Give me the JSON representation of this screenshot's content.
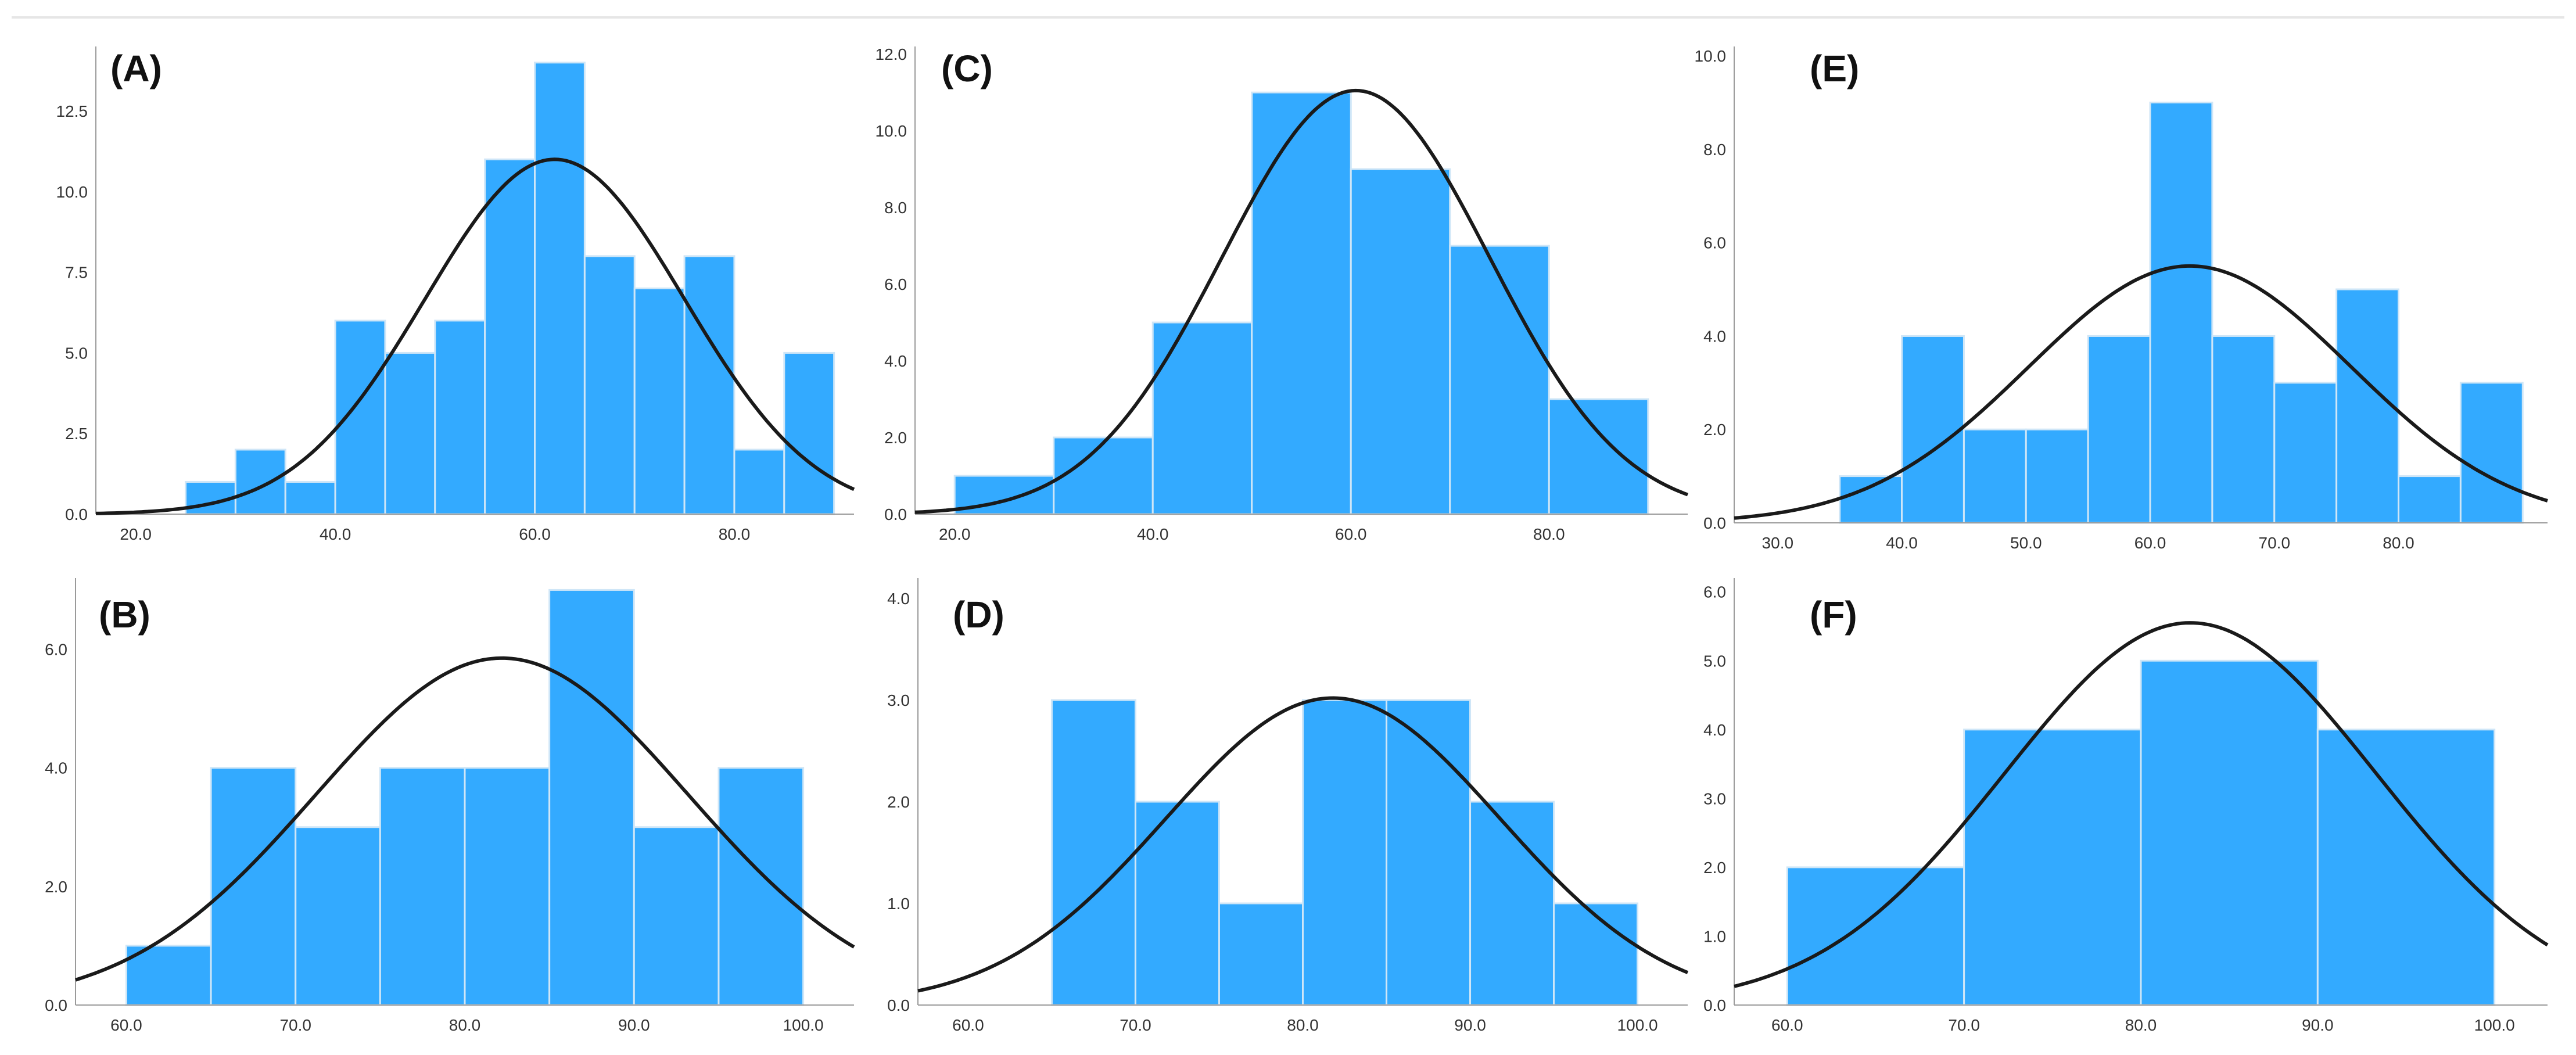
{
  "figure": {
    "panel_count": 6
  },
  "colors": {
    "bar": "#33aaff",
    "bar_edge": "#cfe6f7",
    "curve": "#1a1a1a",
    "axis": "#9a9a9a",
    "text": "#333333"
  },
  "chart_data": [
    {
      "id": "A",
      "label": "(A)",
      "type": "bar",
      "title": "",
      "xlabel": "",
      "ylabel": "",
      "bins": [
        [
          25,
          30
        ],
        [
          30,
          35
        ],
        [
          35,
          40
        ],
        [
          40,
          45
        ],
        [
          45,
          50
        ],
        [
          50,
          55
        ],
        [
          55,
          60
        ],
        [
          60,
          65
        ],
        [
          65,
          70
        ],
        [
          70,
          75
        ],
        [
          75,
          80
        ],
        [
          80,
          85
        ],
        [
          85,
          90
        ]
      ],
      "values": [
        1,
        2,
        1,
        6,
        5,
        6,
        11,
        14,
        8,
        7,
        8,
        2,
        5
      ],
      "xlim": [
        16,
        92
      ],
      "ylim": [
        0,
        14.5
      ],
      "xticks": [
        20,
        40,
        60,
        80
      ],
      "xtick_labels": [
        "20.0",
        "40.0",
        "60.0",
        "80.0"
      ],
      "yticks": [
        0,
        2.5,
        5,
        7.5,
        10,
        12.5
      ],
      "ytick_labels": [
        "0.0",
        "2.5",
        "5.0",
        "7.5",
        "10.0",
        "12.5"
      ],
      "normal_curve": {
        "mean": 62,
        "sd": 13,
        "peak": 11
      }
    },
    {
      "id": "B",
      "label": "(B)",
      "type": "bar",
      "title": "",
      "xlabel": "",
      "ylabel": "",
      "bins": [
        [
          60,
          65
        ],
        [
          65,
          70
        ],
        [
          70,
          75
        ],
        [
          75,
          80
        ],
        [
          80,
          85
        ],
        [
          85,
          90
        ],
        [
          90,
          95
        ],
        [
          95,
          100
        ]
      ],
      "values": [
        1,
        4,
        3,
        4,
        4,
        7,
        3,
        4
      ],
      "xlim": [
        57,
        103
      ],
      "ylim": [
        0,
        7.2
      ],
      "xticks": [
        60,
        70,
        80,
        90,
        100
      ],
      "xtick_labels": [
        "60.0",
        "70.0",
        "80.0",
        "90.0",
        "100.0"
      ],
      "yticks": [
        0,
        2,
        4,
        6
      ],
      "ytick_labels": [
        "0.0",
        "2.0",
        "4.0",
        "6.0"
      ],
      "normal_curve": {
        "mean": 82.2,
        "sd": 11,
        "peak": 5.85
      }
    },
    {
      "id": "C",
      "label": "(C)",
      "type": "bar",
      "title": "",
      "xlabel": "",
      "ylabel": "",
      "bins": [
        [
          20,
          30
        ],
        [
          30,
          40
        ],
        [
          40,
          50
        ],
        [
          50,
          60
        ],
        [
          60,
          70
        ],
        [
          70,
          80
        ],
        [
          80,
          90
        ]
      ],
      "values": [
        1,
        2,
        5,
        11,
        9,
        7,
        3
      ],
      "xlim": [
        16,
        94
      ],
      "ylim": [
        0,
        12.2
      ],
      "xticks": [
        20,
        40,
        60,
        80
      ],
      "xtick_labels": [
        "20.0",
        "40.0",
        "60.0",
        "80.0"
      ],
      "yticks": [
        0,
        2,
        4,
        6,
        8,
        10,
        12
      ],
      "ytick_labels": [
        "0.0",
        "2.0",
        "4.0",
        "6.0",
        "8.0",
        "10.0",
        "12.0"
      ],
      "normal_curve": {
        "mean": 60.5,
        "sd": 13.5,
        "peak": 11.05
      }
    },
    {
      "id": "D",
      "label": "(D)",
      "type": "bar",
      "title": "",
      "xlabel": "",
      "ylabel": "",
      "bins": [
        [
          65,
          70
        ],
        [
          70,
          75
        ],
        [
          75,
          80
        ],
        [
          80,
          85
        ],
        [
          85,
          90
        ],
        [
          90,
          95
        ],
        [
          95,
          100
        ]
      ],
      "values": [
        3,
        2,
        1,
        3,
        3,
        2,
        1
      ],
      "xlim": [
        57,
        103
      ],
      "ylim": [
        0,
        4.2
      ],
      "xticks": [
        60,
        70,
        80,
        90,
        100
      ],
      "xtick_labels": [
        "60.0",
        "70.0",
        "80.0",
        "90.0",
        "100.0"
      ],
      "yticks": [
        0,
        1,
        2,
        3,
        4
      ],
      "ytick_labels": [
        "0.0",
        "1.0",
        "2.0",
        "3.0",
        "4.0"
      ],
      "normal_curve": {
        "mean": 81.8,
        "sd": 10,
        "peak": 3.02
      }
    },
    {
      "id": "E",
      "label": "(E)",
      "type": "bar",
      "title": "",
      "xlabel": "",
      "ylabel": "",
      "bins": [
        [
          35,
          40
        ],
        [
          40,
          45
        ],
        [
          45,
          50
        ],
        [
          50,
          55
        ],
        [
          55,
          60
        ],
        [
          60,
          65
        ],
        [
          65,
          70
        ],
        [
          70,
          75
        ],
        [
          75,
          80
        ],
        [
          80,
          85
        ],
        [
          85,
          90
        ]
      ],
      "values": [
        1,
        4,
        2,
        2,
        4,
        9,
        4,
        3,
        5,
        1,
        3
      ],
      "xlim": [
        26.5,
        92
      ],
      "ylim": [
        0,
        10.2
      ],
      "xticks": [
        30,
        40,
        50,
        60,
        70,
        80
      ],
      "xtick_labels": [
        "30.0",
        "40.0",
        "50.0",
        "60.0",
        "70.0",
        "80.0"
      ],
      "yticks": [
        0,
        2,
        4,
        6,
        8,
        10
      ],
      "ytick_labels": [
        "0.0",
        "2.0",
        "4.0",
        "6.0",
        "8.0",
        "10.0"
      ],
      "normal_curve": {
        "mean": 63.2,
        "sd": 13,
        "peak": 5.5
      }
    },
    {
      "id": "F",
      "label": "(F)",
      "type": "bar",
      "title": "",
      "xlabel": "",
      "ylabel": "",
      "bins": [
        [
          60,
          70
        ],
        [
          70,
          80
        ],
        [
          80,
          90
        ],
        [
          90,
          100
        ]
      ],
      "values": [
        2,
        4,
        5,
        4
      ],
      "xlim": [
        57,
        103
      ],
      "ylim": [
        0,
        6.2
      ],
      "xticks": [
        60,
        70,
        80,
        90,
        100
      ],
      "xtick_labels": [
        "60.0",
        "70.0",
        "80.0",
        "90.0",
        "100.0"
      ],
      "yticks": [
        0,
        1,
        2,
        3,
        4,
        5,
        6
      ],
      "ytick_labels": [
        "0.0",
        "1.0",
        "2.0",
        "3.0",
        "4.0",
        "5.0",
        "6.0"
      ],
      "normal_curve": {
        "mean": 82.8,
        "sd": 10.5,
        "peak": 5.55
      }
    }
  ]
}
